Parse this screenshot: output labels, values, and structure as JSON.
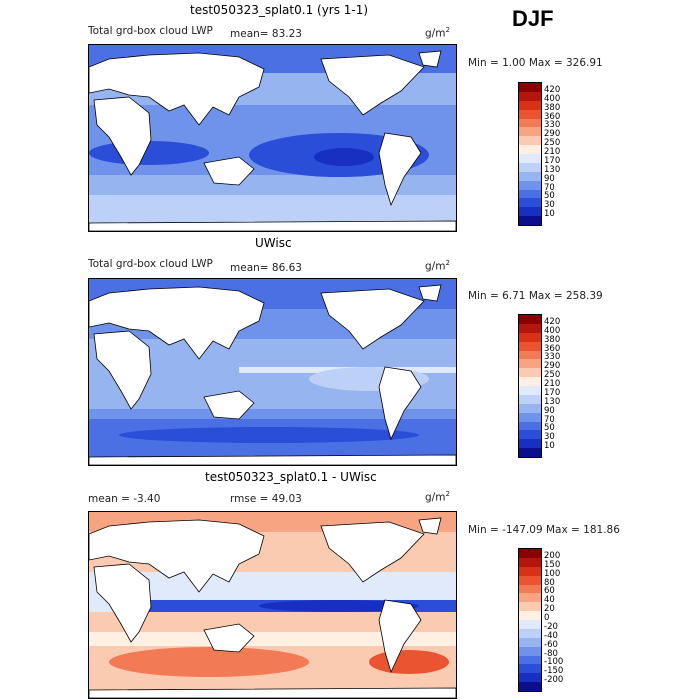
{
  "season": "DJF",
  "units": "g/m",
  "units_sup": "2",
  "panels": [
    {
      "title": "test050323_splat0.1 (yrs 1-1)",
      "variable": "Total grd-box cloud LWP",
      "stat_text": "mean=  83.23",
      "range_text": "Min =    1.00 Max = 326.91",
      "levels": [
        "420",
        "400",
        "380",
        "360",
        "330",
        "290",
        "250",
        "210",
        "170",
        "130",
        "90",
        "70",
        "50",
        "30",
        "10"
      ],
      "colors": [
        "#8b0000",
        "#b4160b",
        "#d93018",
        "#ea5430",
        "#f27a55",
        "#f7a483",
        "#fbcbb1",
        "#fff0e3",
        "#e1eafb",
        "#bdd0f7",
        "#96b4f0",
        "#6f92ea",
        "#4a70e4",
        "#2a4ed8",
        "#1730c2",
        "#0b0f8c"
      ]
    },
    {
      "title": "UWisc",
      "variable": "Total grd-box cloud LWP",
      "stat_text": "mean=  86.63",
      "range_text": "Min =    6.71 Max = 258.39",
      "levels": [
        "420",
        "400",
        "380",
        "360",
        "330",
        "290",
        "250",
        "210",
        "170",
        "130",
        "90",
        "70",
        "50",
        "30",
        "10"
      ],
      "colors": [
        "#8b0000",
        "#b4160b",
        "#d93018",
        "#ea5430",
        "#f27a55",
        "#f7a483",
        "#fbcbb1",
        "#fff0e3",
        "#e1eafb",
        "#bdd0f7",
        "#96b4f0",
        "#6f92ea",
        "#4a70e4",
        "#2a4ed8",
        "#1730c2",
        "#0b0f8c"
      ]
    },
    {
      "title": "test050323_splat0.1 - UWisc",
      "stat_text": "mean =   -3.40",
      "rmse_text": "rmse =   49.03",
      "range_text": "Min = -147.09 Max = 181.86",
      "levels": [
        "200",
        "150",
        "100",
        "80",
        "60",
        "40",
        "20",
        "0",
        "-20",
        "-40",
        "-60",
        "-80",
        "-100",
        "-150",
        "-200"
      ],
      "colors": [
        "#8b0000",
        "#b4160b",
        "#d93018",
        "#ea5430",
        "#f27a55",
        "#f7a483",
        "#fbcbb1",
        "#fff0e3",
        "#e1eafb",
        "#bdd0f7",
        "#96b4f0",
        "#6f92ea",
        "#4a70e4",
        "#2a4ed8",
        "#1730c2",
        "#0b0f8c"
      ]
    }
  ]
}
